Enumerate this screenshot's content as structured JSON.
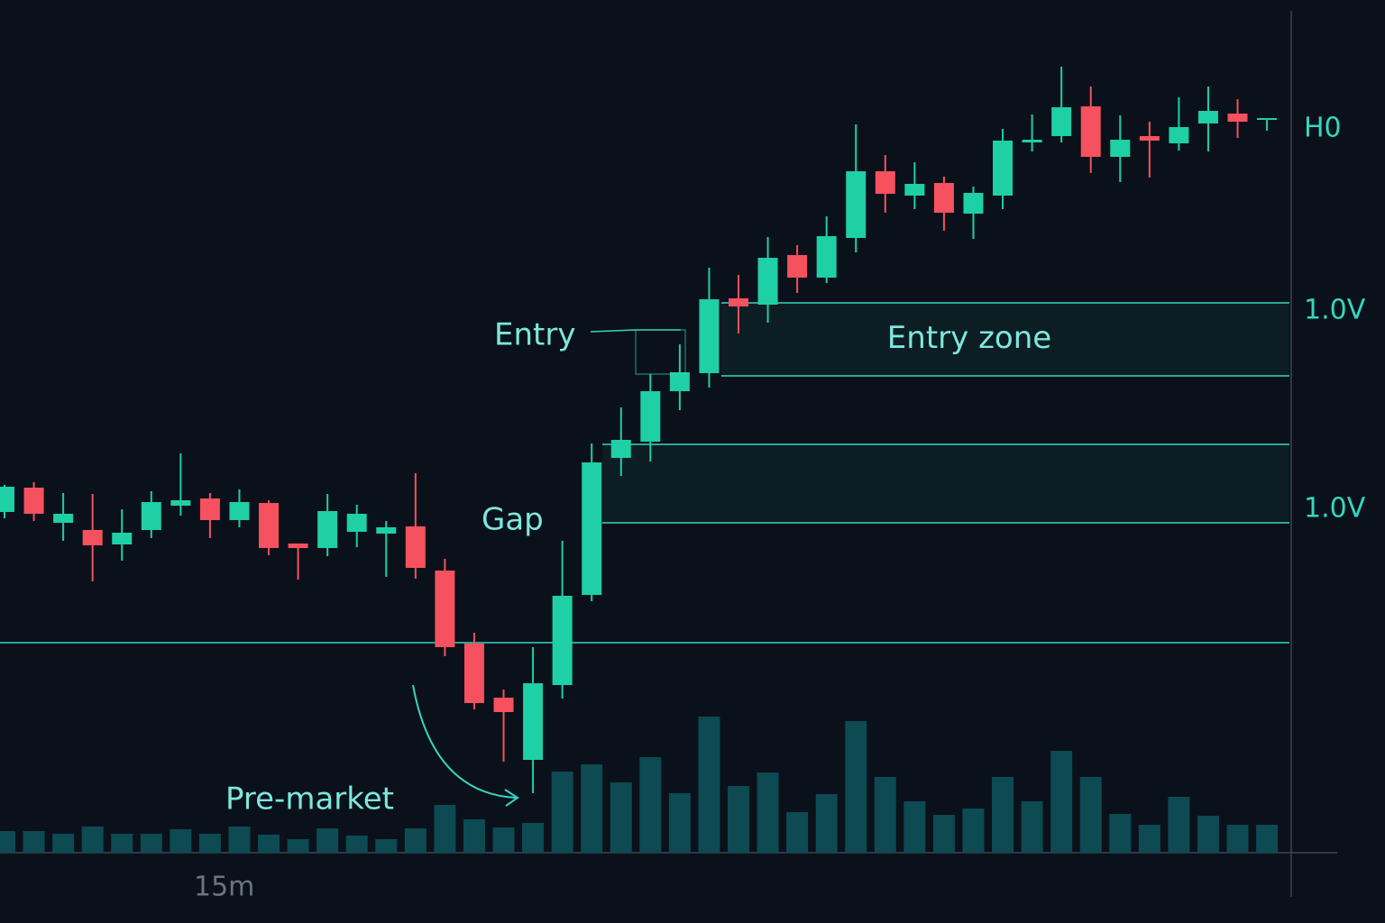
{
  "chart_data": {
    "type": "candlestick",
    "x_label": "15m",
    "categories": [
      null,
      null,
      null,
      null,
      null,
      null,
      null,
      null,
      null,
      null,
      null,
      null,
      null,
      null,
      null,
      null,
      null,
      null,
      null,
      null,
      null,
      null,
      null,
      null,
      null,
      null,
      null,
      null,
      null,
      null,
      null,
      null,
      null,
      null,
      null,
      null,
      null,
      null,
      null,
      null,
      null,
      null,
      null,
      null
    ],
    "open": [
      33.2,
      35.9,
      32.0,
      31.2,
      29.6,
      31.2,
      33.9,
      34.7,
      32.3,
      34.2,
      29.7,
      29.2,
      31.0,
      30.8,
      31.6,
      26.7,
      18.6,
      12.6,
      5.7,
      14.0,
      24.0,
      39.2,
      41.0,
      46.6,
      48.6,
      56.9,
      56.2,
      61.7,
      59.2,
      63.6,
      71.0,
      68.3,
      69.7,
      66.3,
      68.3,
      74.2,
      74.9,
      78.2,
      72.6,
      74.9,
      74.1,
      76.3,
      77.4,
      76.7
    ],
    "high": [
      36.2,
      36.5,
      35.3,
      35.2,
      33.5,
      35.5,
      39.7,
      35.3,
      35.7,
      34.5,
      29.7,
      35.2,
      34.0,
      32.2,
      37.5,
      28.0,
      19.8,
      13.5,
      18.2,
      30.0,
      40.8,
      44.8,
      48.5,
      51.8,
      60.3,
      59.5,
      63.7,
      62.8,
      66.0,
      76.2,
      72.8,
      72.0,
      70.4,
      69.3,
      75.7,
      77.3,
      82.6,
      80.4,
      77.2,
      76.5,
      79.2,
      80.4,
      79.0,
      76.9
    ],
    "low": [
      32.5,
      32.2,
      30.0,
      25.5,
      27.8,
      30.3,
      32.8,
      30.3,
      31.5,
      28.4,
      25.7,
      28.3,
      29.3,
      26.0,
      25.8,
      17.2,
      11.3,
      5.5,
      2.0,
      12.5,
      23.3,
      37.2,
      38.8,
      44.5,
      47.0,
      53.0,
      54.2,
      57.5,
      58.6,
      62.0,
      66.4,
      66.8,
      64.4,
      63.5,
      66.8,
      73.2,
      74.2,
      70.8,
      69.8,
      70.3,
      73.3,
      73.2,
      74.7,
      75.5
    ],
    "close": [
      36.0,
      33.0,
      33.0,
      29.5,
      30.9,
      34.3,
      34.5,
      32.3,
      34.3,
      29.2,
      29.2,
      33.3,
      33.0,
      31.5,
      27.0,
      18.2,
      12.0,
      11.0,
      14.2,
      23.9,
      38.7,
      41.2,
      46.6,
      48.7,
      56.8,
      56.0,
      61.4,
      59.2,
      63.8,
      71.0,
      68.5,
      69.6,
      66.4,
      68.6,
      74.4,
      74.5,
      78.1,
      72.6,
      74.5,
      74.4,
      75.9,
      77.7,
      76.5,
      76.9
    ],
    "volume": [
      24,
      24,
      21,
      29,
      21,
      21,
      26,
      21,
      29,
      20,
      15,
      27,
      19,
      15,
      27,
      53,
      37,
      28,
      33,
      90,
      98,
      78,
      106,
      66,
      151,
      74,
      89,
      45,
      65,
      146,
      84,
      57,
      42,
      49,
      84,
      57,
      113,
      84,
      43,
      31,
      62,
      41,
      31,
      31
    ],
    "up_color": "#1fcfa5",
    "down_color": "#f5515f",
    "volume_color": "#0d4a52",
    "level_color": "#36d6c0",
    "ylim": [
      0,
      90
    ],
    "vlim": [
      0,
      200
    ],
    "yticks": [
      {
        "value": 75.7,
        "label": "H0"
      },
      {
        "value": 55.5,
        "label": "1.0V"
      },
      {
        "value": 33.5,
        "label": "1.0V"
      }
    ],
    "zones": [
      {
        "label": "Entry zone",
        "range": [
          48.3,
          56.4
        ]
      },
      {
        "range": [
          32.0,
          40.7
        ]
      }
    ],
    "levels": [
      18.7
    ],
    "annotations": {
      "entry": "Entry",
      "gap": "Gap",
      "premarket": "Pre-market"
    }
  }
}
